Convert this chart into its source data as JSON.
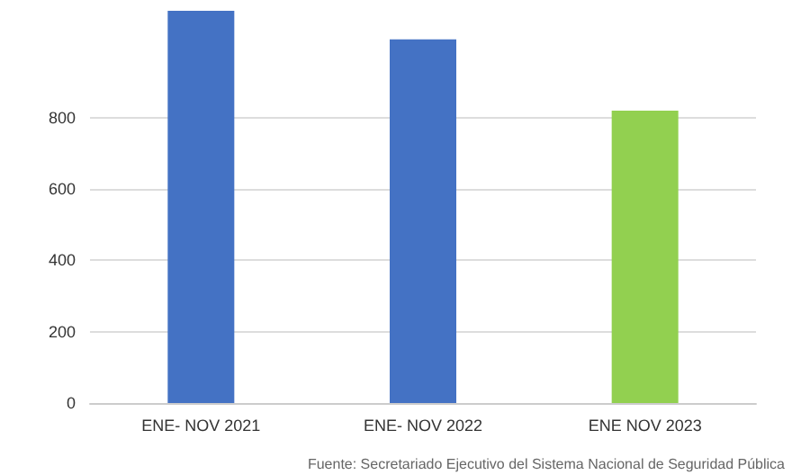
{
  "chart_data": {
    "type": "bar",
    "categories": [
      "ENE- NOV 2021",
      "ENE- NOV 2022",
      "ENE NOV 2023"
    ],
    "values": [
      1100,
      1020,
      820
    ],
    "colors": [
      "#4472c4",
      "#4472c4",
      "#92d050"
    ],
    "ylim": [
      0,
      1100
    ],
    "yticks": [
      0,
      200,
      400,
      600,
      800
    ],
    "grid": "y",
    "annotations": [
      "Fuente: Secretariado Ejecutivo del Sistema Nacional de Seguridad Pública"
    ]
  }
}
